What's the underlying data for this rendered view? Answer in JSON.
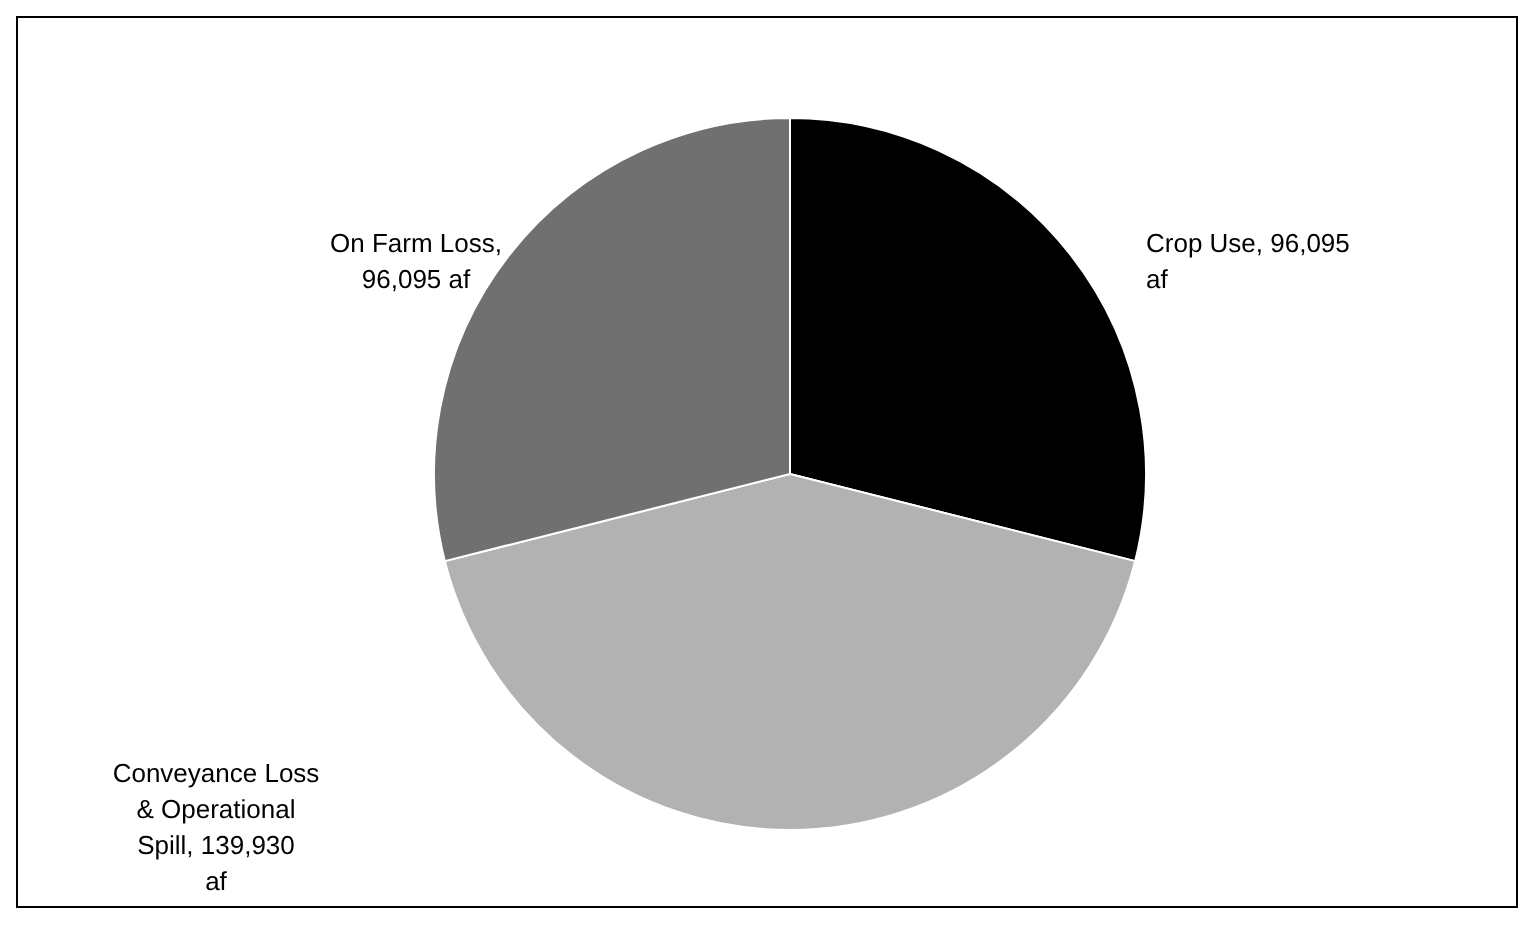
{
  "chart_data": {
    "type": "pie",
    "categories": [
      "Crop Use, 96,095 af",
      "Conveyance Loss & Operational Spill, 139,930 af",
      "On Farm Loss, 96,095 af"
    ],
    "values": [
      96095,
      139930,
      96095
    ],
    "colors": [
      "#000000",
      "#b2b2b2",
      "#707070"
    ]
  }
}
